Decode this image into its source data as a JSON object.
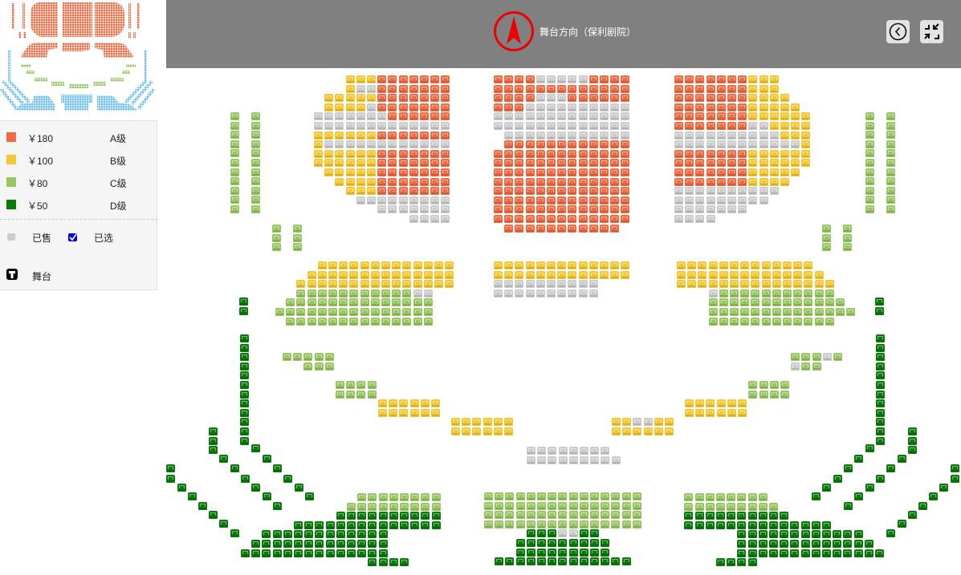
{
  "header": {
    "title": "舞台方向（保利剧院）",
    "compass_icon": "compass-north-icon",
    "back_icon": "back-circle-icon",
    "collapse_icon": "collapse-icon"
  },
  "legend": {
    "prices": [
      {
        "price": "￥180",
        "level": "A级",
        "color": "#f06a44"
      },
      {
        "price": "￥100",
        "level": "B级",
        "color": "#f5c733"
      },
      {
        "price": "￥80",
        "level": "C级",
        "color": "#98c663"
      },
      {
        "price": "￥50",
        "level": "D级",
        "color": "#0a7a0a"
      }
    ],
    "sold_label": "已售",
    "selected_label": "已选",
    "stage_label": "舞台"
  },
  "status_colors": {
    "A": "#f06a44",
    "B": "#f5c733",
    "C": "#98c663",
    "D": "#0a7a0a",
    "S": "#cccccc",
    "selected": "#0000ee"
  },
  "minimap_colors": {
    "upper": "#f06a44",
    "middle": "#98c663",
    "lower": "#6cbdf0"
  },
  "seat_sections": {
    "upper_left": [
      "...BBBAAAAAAA",
      "...BSSAAAAAAA",
      ".BBBBBAAAAAAA",
      ".BBBBSAAAAAAA",
      "SSSSSSSAAAAAA",
      "SSSSSSSSSSSSS",
      "BBBBBBAAAAAAA",
      "BSSSSSSSSSSSS",
      "BBBBBBAAAAAAA",
      "BBBBBBAAAAAAA",
      ".BBBBBAAAAAAA",
      "..BBBBAAAAAAA",
      "...BBBAAAAAAA",
      "....SSSSSSSSS",
      "......SSSSSSS",
      ".........SSSS"
    ],
    "upper_center": [
      "AAAASSSSSAAAA",
      "AAAAAAAAAAAAA",
      "AAAASSSAAAAAA",
      "AAASSSSSSSSSS",
      "SSSSSSSSSSSSS",
      "SSSSSSSSSSSSS",
      ".SSSSSSSSSSSS",
      ".AAAAAAAAAAAA",
      "AAAAAAAAAAAAA",
      "AAAAAAAAAAAAA",
      "AAAAAAAAAAAAA",
      "AAAAAAAAAAAAA",
      "AAAAAAAAAAAAA",
      "AAAAAAAAAAAAA",
      "AAAAAAAAAAAAA",
      "AAAAAAAAAAAAA",
      ".AAAAAAAAAAA."
    ],
    "upper_right": [
      "AAAAAAABBB...",
      "AAAAAAABBB...",
      "AAAAAAABBBB..",
      "AAAAAAABBBBB.",
      "AAAAAAABBBBBB",
      "AAAAAAASSBBBB",
      "SSSSSSSSSSBBB",
      "SSSSSSSSSSSSB",
      "AAAAAAABBBBBB",
      "AAAAAAABBBBBB",
      "AAAAAAABBBBB.",
      "AAAAAAABBBB..",
      "SSSSSSSSSS...",
      "SSSSSSSSS....",
      "SSSSSSS......",
      "SSSS........."
    ],
    "wing_left_a": [
      "C.C",
      "C.C",
      "C.C",
      "C.C",
      "C.C",
      "C.C",
      "C.C",
      "C.C",
      "C.C",
      "C.C",
      "C.C"
    ],
    "wing_left_b": [
      "C.C",
      "C.C",
      "C.C"
    ],
    "wing_right_a": [
      "C.C",
      "C.C",
      "C.C",
      "C.C",
      "C.C",
      "C.C",
      "C.C",
      "C.C",
      "C.C",
      "C.C",
      "C.C"
    ],
    "wing_right_b": [
      "C.C",
      "C.C",
      "C.C"
    ],
    "mid_left": [
      "....BBBBBBBBBBBBB",
      "...BBBBBBBBBBBBBB",
      "..BBBBBBBBBBBBBBB",
      "..CCCCCCCCCCCSS..",
      ".CCCCCCCCCCCCCC..",
      "CCCCCCCCCCCCCCC..",
      ".CCCCCCCCCCCCCC.."
    ],
    "mid_center": [
      "BBBBBBBBBBBBB",
      "BBBBBBBBBBBBB",
      "SSSSSSSSSS",
      "SSSSSSSSSS"
    ],
    "mid_right": [
      "BBBBBBBBBBBBB....",
      "BBBBBBBBBBBBBB...",
      "BBBBBBBBBBBBBBB..",
      "...SCCCCCCCCCCC..",
      "...CCCCCCCCCCCCC.",
      "...CCCCCCCCCCCCCC",
      "...CCCCCCCCCCCC.."
    ],
    "aisle_left": [
      "D",
      "D"
    ],
    "aisle_right": [
      "D",
      "D"
    ],
    "column_left": [
      "D",
      "D",
      "D",
      "D",
      "D",
      "D",
      "D",
      "D",
      "D",
      "D",
      "D",
      "D"
    ],
    "column_right": [
      "D",
      "D",
      "D",
      "D",
      "D",
      "D",
      "D",
      "D",
      "D",
      "D",
      "D",
      "D"
    ],
    "box_c1_left": [
      "CCCCC",
      "..CCC"
    ],
    "box_c1_right": [
      "CCCSC",
      "SCC.."
    ],
    "box_c2_left": [
      "CCCC",
      "CCCC"
    ],
    "box_c2_right": [
      "CCCC",
      "CCCC"
    ],
    "box_b1_left": [
      "BBBBBB",
      "BBBBBB"
    ],
    "box_b1_right": [
      "BBBBBB",
      "BBBBBB"
    ],
    "box_b2_left": [
      "BBBBBB",
      "BBBBBB"
    ],
    "box_b2_right": [
      "BBSSBB",
      "BBBBBB"
    ],
    "diag_a_left": "DDDDDDDD",
    "diag_b_left": "DDDDDDDDD",
    "diag_c_left": "DDDDDD",
    "diag_a_right": "DDDDDDDD",
    "diag_b_right": "DDDDDDDDD",
    "diag_c_right": "DDDDDD",
    "lower_left": [
      "...........CCCCCCCC",
      "..........CCCCCCCCC",
      ".........DDDDDDDDDD",
      ".....DDDDDDDDDDDDDD",
      "..DDDDDDDDDDDD.....",
      ".DDDDDDDDDDDDD.....",
      "DDDDDDDDDDDDDD.....",
      "............DDDD..."
    ],
    "lower_right": [
      "CCCCCCCC...........",
      "CCCCCCCCC..........",
      "DDDDDDDDDD.........",
      "DDDDDDDDDDDDDD.....",
      ".....DDDDDDDDDDDD..",
      ".....DDDDDDDDDDDDD.",
      ".....DDDDDDDDDDDDDD",
      "...DDDD............"
    ],
    "rear_center": [
      "SSSSSSSS",
      "SSSSSSSSS"
    ],
    "lower_center": [
      "CCCCCCCCCCCCCCC",
      "CCCCCCCCCCCCCCC",
      "CCCCCCCCCCCCCCC",
      "CCCCCCCCCCCCCCC",
      "....DDDSSDD....",
      "...DDDDDDDDD...",
      "...DDDDDDDDD...",
      ".DDDDDDDDDDDDD."
    ]
  }
}
